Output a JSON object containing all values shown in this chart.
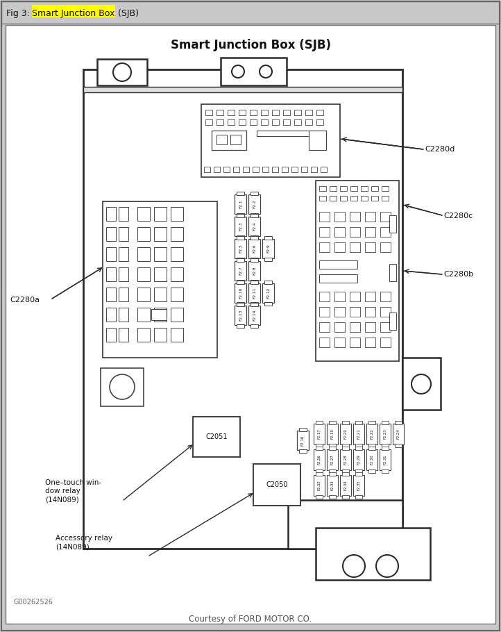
{
  "title": "Smart Junction Box (SJB)",
  "header_label": "Fig 3:",
  "header_highlight": "Smart Junction Box",
  "header_suffix": " (SJB)",
  "footer_text": "Courtesy of FORD MOTOR CO.",
  "watermark": "G00262526",
  "bg_color": "#c8c8c8",
  "diagram_bg": "#ffffff",
  "line_color": "#2a2a2a",
  "fuse_color": "#444444",
  "C2280a_label": "C2280a",
  "C2280b_label": "C2280b",
  "C2280c_label": "C2280c",
  "C2280d_label": "C2280d",
  "relay1_label": "One–touch win-\ndow relay\n(14N089)",
  "relay2_label": "Accessory relay\n(14N089)"
}
